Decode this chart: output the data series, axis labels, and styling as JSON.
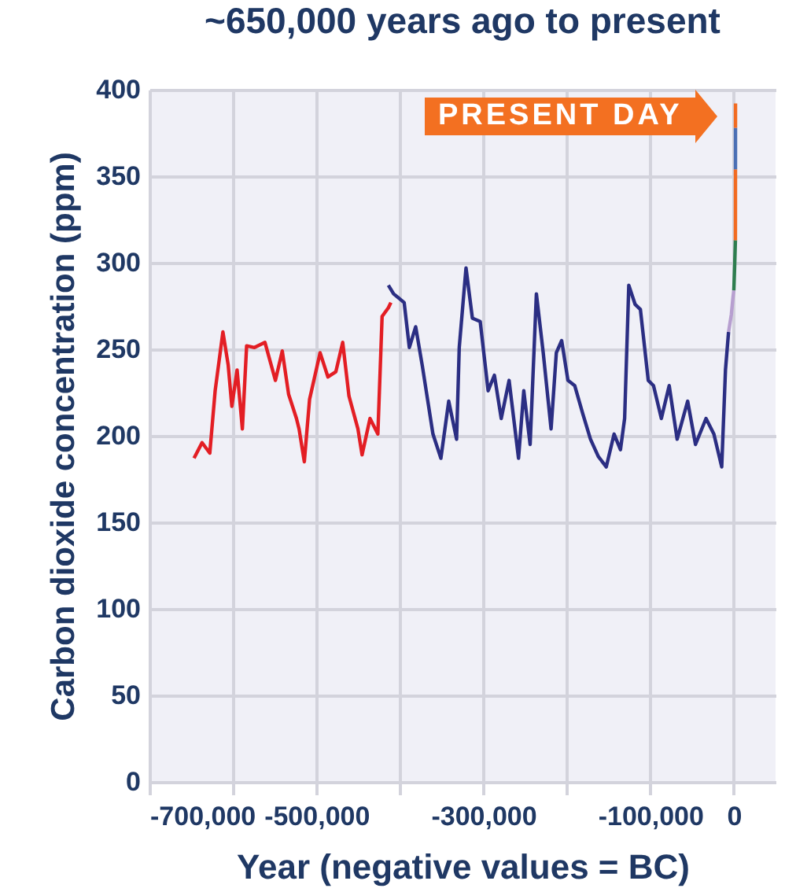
{
  "chart_data": {
    "type": "line",
    "title": "~650,000 years ago to present",
    "xlabel": "Year (negative values = BC)",
    "ylabel": "Carbon dioxide concentration (ppm)",
    "xlim": [
      -700000,
      50000
    ],
    "xticks": [
      {
        "value": -700000,
        "label": "-700,000"
      },
      {
        "value": -600000,
        "label": null
      },
      {
        "value": -500000,
        "label": "-500,000"
      },
      {
        "value": -400000,
        "label": null
      },
      {
        "value": -300000,
        "label": "-300,000"
      },
      {
        "value": -200000,
        "label": null
      },
      {
        "value": -100000,
        "label": "-100,000"
      },
      0
    ],
    "ylim": [
      0,
      400
    ],
    "yticks": [
      0,
      50,
      100,
      150,
      200,
      250,
      300,
      350,
      400
    ],
    "grid": true,
    "legend": false,
    "marker": "none",
    "line_style": "solid",
    "annotations": [
      {
        "text": "PRESENT DAY",
        "x": 0,
        "y": 385
      }
    ],
    "series": [
      {
        "color": "#e31e24",
        "x": [
          -646600,
          -637000,
          -627700,
          -621300,
          -612000,
          -605700,
          -601300,
          -595000,
          -588700,
          -583600,
          -574200,
          -561700,
          -549100,
          -540900,
          -533300,
          -523900,
          -520800,
          -514500,
          -508200,
          -495600,
          -486200,
          -476700,
          -468500,
          -461000,
          -450300,
          -445300,
          -435800,
          -426400,
          -421300,
          -413800,
          -410800
        ],
        "values": [
          187,
          196,
          190,
          226,
          260,
          241,
          217,
          238,
          204,
          252,
          251,
          254,
          232,
          249,
          224,
          210,
          204,
          185,
          221,
          248,
          234,
          237,
          254,
          223,
          204,
          189,
          210,
          201,
          269,
          274,
          277
        ]
      },
      {
        "color": "#2b2e83",
        "x": [
          -413800,
          -407500,
          -394900,
          -388700,
          -381100,
          -373000,
          -360400,
          -350900,
          -341500,
          -332100,
          -328900,
          -320800,
          -313200,
          -303800,
          -294300,
          -286800,
          -278600,
          -269200,
          -257900,
          -251600,
          -244000,
          -236500,
          -228300,
          -218900,
          -212600,
          -206200,
          -198700,
          -190600,
          -181100,
          -171700,
          -162300,
          -152800,
          -143400,
          -135800,
          -130800,
          -125800,
          -118300,
          -111900,
          -102500,
          -96200,
          -86800,
          -77400,
          -67900,
          -55300,
          -45900,
          -33300,
          -23900,
          -14500,
          -10000,
          -6300
        ],
        "values": [
          287,
          282,
          277,
          251,
          263,
          240,
          201,
          187,
          220,
          198,
          251,
          297,
          268,
          266,
          226,
          235,
          210,
          232,
          187,
          226,
          195,
          282,
          248,
          204,
          248,
          255,
          232,
          229,
          213,
          198,
          188,
          182,
          201,
          192,
          210,
          287,
          276,
          273,
          232,
          229,
          210,
          229,
          198,
          220,
          195,
          210,
          201,
          182,
          238,
          260
        ]
      },
      {
        "color": "#b79fd0",
        "x": [
          -6300,
          -3000,
          -1000,
          0
        ],
        "values": [
          260,
          270,
          280,
          284
        ]
      },
      {
        "color": "#2e7d4f",
        "x": [
          0,
          1000,
          1900
        ],
        "values": [
          284,
          298,
          313
        ]
      },
      {
        "color": "#f26b21",
        "x": [
          1900,
          1958,
          1980
        ],
        "values": [
          313,
          335,
          354
        ]
      },
      {
        "color": "#4a6fb5",
        "x": [
          1980,
          1995,
          2005
        ],
        "values": [
          354,
          365,
          378
        ]
      },
      {
        "color": "#f26b21",
        "x": [
          2005,
          2012,
          2020
        ],
        "values": [
          378,
          385,
          392
        ]
      }
    ]
  }
}
